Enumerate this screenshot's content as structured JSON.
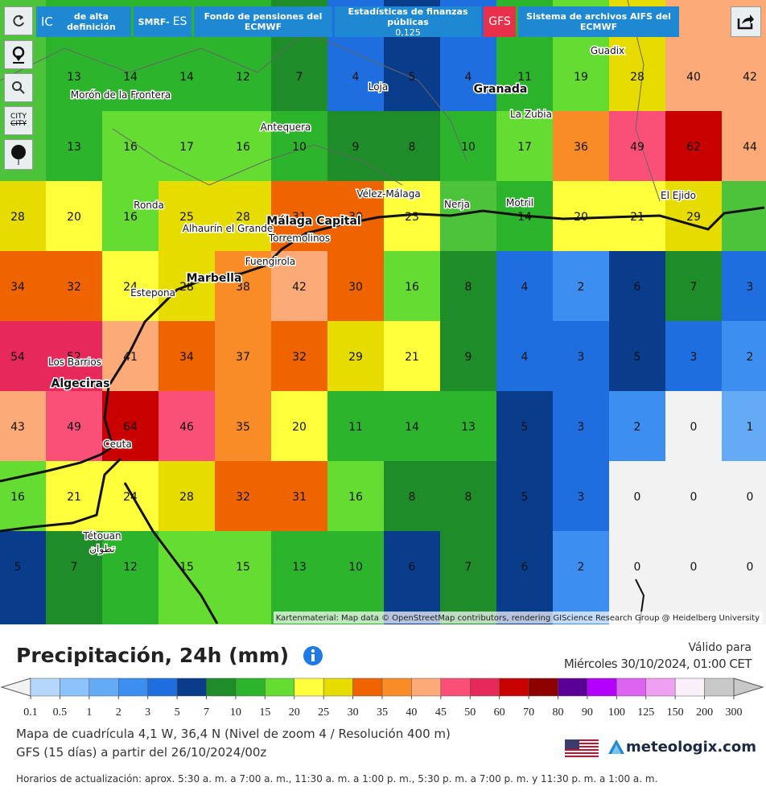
{
  "toolbar": {
    "city": "CITY"
  },
  "tabs": {
    "hd": {
      "main": "IC",
      "sub": "de alta definición"
    },
    "smrf": {
      "main": "SMRF-",
      "sub": "ES"
    },
    "pension": "Fondo de pensiones del ECMWF",
    "stats": {
      "line1": "Estadísticas de finanzas públicas",
      "line2": "0,125"
    },
    "gfs": "GFS",
    "aifs": "Sistema de archivos AIFS del ECMWF"
  },
  "map": {
    "grid_rows": [
      [
        null,
        13,
        14,
        14,
        12,
        7,
        4,
        5,
        4,
        11,
        19,
        28,
        40,
        42
      ],
      [
        null,
        13,
        16,
        17,
        16,
        10,
        9,
        8,
        10,
        17,
        36,
        49,
        62,
        44
      ],
      [
        28,
        20,
        16,
        25,
        28,
        31,
        30,
        23,
        null,
        14,
        20,
        21,
        29,
        null
      ],
      [
        34,
        32,
        24,
        28,
        38,
        42,
        30,
        16,
        8,
        4,
        2,
        6,
        7,
        3
      ],
      [
        54,
        52,
        41,
        34,
        37,
        32,
        29,
        21,
        9,
        4,
        3,
        5,
        3,
        2
      ],
      [
        43,
        49,
        64,
        46,
        35,
        20,
        11,
        14,
        13,
        5,
        3,
        2,
        0,
        1
      ],
      [
        16,
        21,
        24,
        28,
        32,
        31,
        16,
        8,
        8,
        5,
        3,
        0,
        0,
        0
      ],
      [
        5,
        7,
        12,
        15,
        15,
        13,
        10,
        6,
        7,
        6,
        2,
        0,
        0,
        0
      ]
    ],
    "places": [
      "Guadix",
      "Loja",
      "Granada",
      "La Zubia",
      "Morón de la Frontera",
      "Antequera",
      "Vélez-Málaga",
      "Nerja",
      "Motril",
      "El Ejido",
      "Ronda",
      "Alhaurín el Grande",
      "Málaga Capital",
      "Torremolinos",
      "Fuengirola",
      "Marbella",
      "Estepona",
      "Los Barrios",
      "Algeciras",
      "Ceuta",
      "Tétouan",
      "تطوان"
    ],
    "attribution": "Kartenmaterial: Map data © OpenStreetMap contributors, rendering GIScience Research Group @ Heidelberg University"
  },
  "legend": {
    "ticks": [
      0.1,
      0.5,
      1,
      2,
      3,
      5,
      7,
      10,
      15,
      20,
      25,
      30,
      35,
      40,
      45,
      50,
      60,
      70,
      80,
      90,
      100,
      125,
      150,
      200,
      300
    ],
    "colors": [
      "#b4d7fa",
      "#8cc3fa",
      "#64aaf5",
      "#3c8ef0",
      "#1e6ee0",
      "#0a3c8c",
      "#1e8c28",
      "#2cb42c",
      "#64dc32",
      "#ffff3c",
      "#e6dc00",
      "#f06400",
      "#fa8c28",
      "#fcaa78",
      "#fa5078",
      "#e6285a",
      "#c80000",
      "#8c0000",
      "#5a0096",
      "#b400ff",
      "#dc64f0",
      "#f0a0f0",
      "#faf0fa",
      "#c8c8c8"
    ],
    "under_color": "#f2f2f2"
  },
  "footer": {
    "title": "Precipitación, 24h (mm)",
    "valid_label": "Válido para",
    "valid_time": "Miércoles 30/10/2024, 01:00 CET",
    "grid_info": "Mapa de cuadrícula 4,1 W, 36,4 N (Nivel de zoom 4 / Resolución 400 m)",
    "model_info": "GFS (15 días) a partir del 26/10/2024/00z",
    "brand": "meteologix.com",
    "update_times": "Horarios de actualización: aprox. 5:30 a. m. a 7:00 a. m., 11:30 a. m. a 1:00 p. m., 5:30 p. m. a 7:00 p. m. y 11:30 p. m. a 1:00 a. m."
  }
}
